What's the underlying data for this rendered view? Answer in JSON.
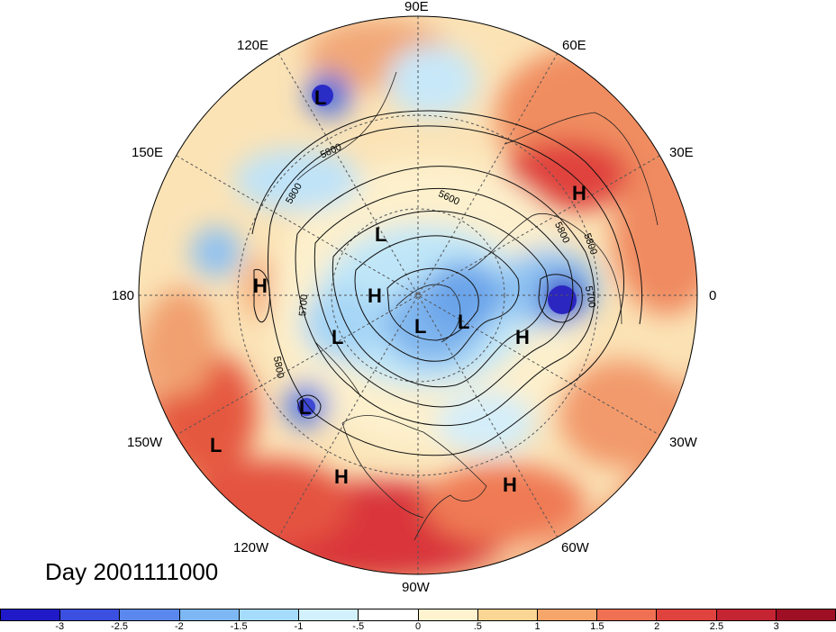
{
  "title": "Day 2001111000",
  "longitude_labels": {
    "lon_90e": "90E",
    "lon_60e": "60E",
    "lon_30e": "30E",
    "lon_0": "0",
    "lon_30w": "30W",
    "lon_60w": "60W",
    "lon_90w": "90W",
    "lon_120w": "120W",
    "lon_150w": "150W",
    "lon_180": "180",
    "lon_150e": "150E",
    "lon_120e": "120E"
  },
  "contour_labels": [
    "5800",
    "5800",
    "5600",
    "5800",
    "5700",
    "5700",
    "5800",
    "5800"
  ],
  "pressure_centers": [
    {
      "type": "L"
    },
    {
      "type": "H"
    },
    {
      "type": "L"
    },
    {
      "type": "H"
    },
    {
      "type": "H"
    },
    {
      "type": "L"
    },
    {
      "type": "L"
    },
    {
      "type": "L"
    },
    {
      "type": "H"
    },
    {
      "type": "L"
    },
    {
      "type": "L"
    },
    {
      "type": "H"
    },
    {
      "type": "H"
    }
  ],
  "colorbar": {
    "colors": [
      "#2019c8",
      "#3b4fe0",
      "#5a88ee",
      "#7db8f5",
      "#a6dcfb",
      "#d2f1fc",
      "#ffffff",
      "#fff4cf",
      "#fbd593",
      "#f6a56b",
      "#ef7052",
      "#e0433e",
      "#c52433",
      "#9e0f26"
    ],
    "ticks": [
      "-3",
      "-2.5",
      "-2",
      "-1.5",
      "-1",
      "-.5",
      "0",
      ".5",
      "1",
      "1.5",
      "2",
      "2.5",
      "3"
    ]
  }
}
